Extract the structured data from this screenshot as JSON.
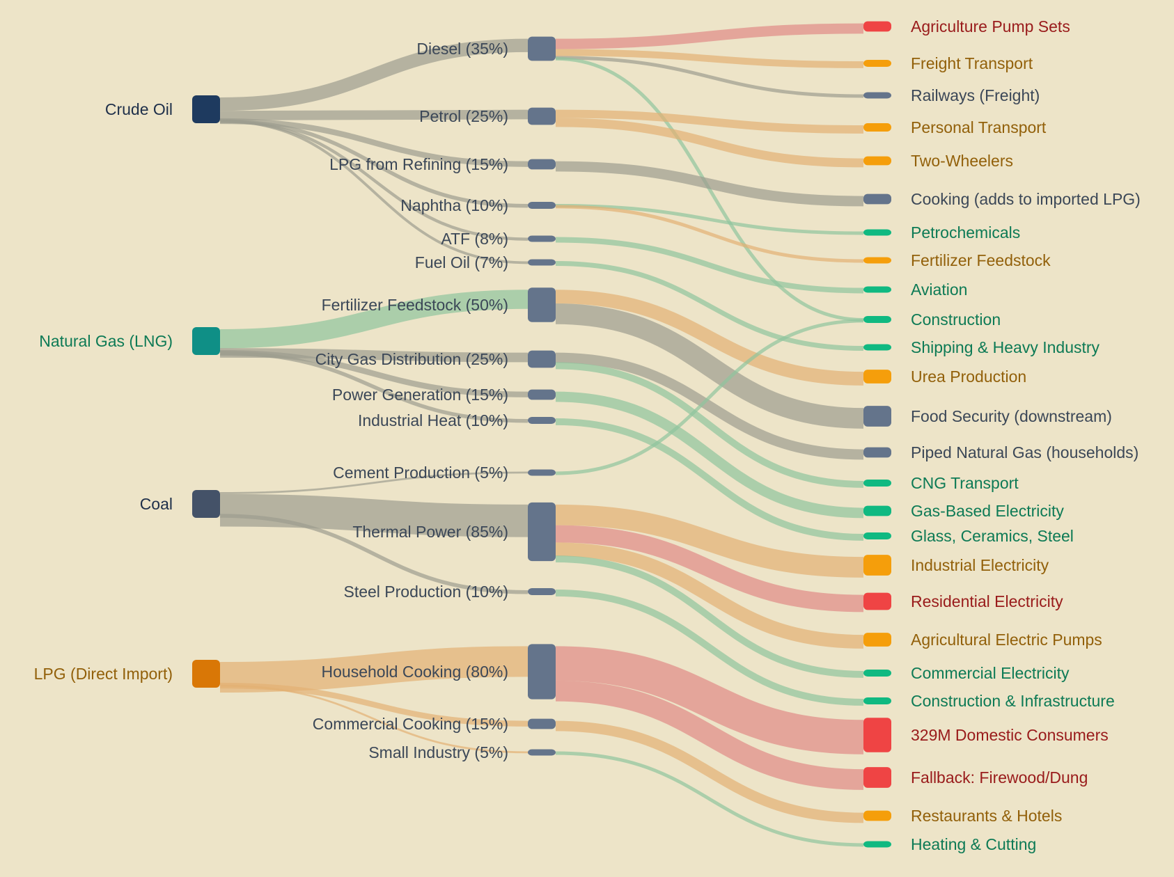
{
  "colors": {
    "background": "#ede4c8",
    "source_crude": "#1e3a5f",
    "source_gas": "#0f8f86",
    "source_coal": "#445268",
    "source_lpg": "#d97706",
    "mid_node": "#64748b",
    "red": "#ef4444",
    "amber": "#f59e0b",
    "green": "#10b981",
    "slate": "#64748b",
    "label_red": "#991b1b",
    "label_amber": "#92600a",
    "label_green": "#0d7a55",
    "label_slate": "#3b4757",
    "label_dark": "#1e2f4a",
    "label_mid": "#3b4757",
    "link_grey": "#9d9d8e",
    "link_red": "#e08a86",
    "link_amber": "#e2b173",
    "link_green": "#8fc59d"
  },
  "sources": [
    {
      "id": "crude",
      "label": "Crude Oil",
      "tone": "dark"
    },
    {
      "id": "gas",
      "label": "Natural Gas (LNG)",
      "tone": "green"
    },
    {
      "id": "coal",
      "label": "Coal",
      "tone": "dark"
    },
    {
      "id": "lpg",
      "label": "LPG (Direct Import)",
      "tone": "amber"
    }
  ],
  "intermediates": [
    {
      "id": "diesel",
      "label": "Diesel (35%)"
    },
    {
      "id": "petrol",
      "label": "Petrol (25%)"
    },
    {
      "id": "lpgref",
      "label": "LPG from Refining (15%)"
    },
    {
      "id": "naphtha",
      "label": "Naphtha (10%)"
    },
    {
      "id": "atf",
      "label": "ATF (8%)"
    },
    {
      "id": "fueloil",
      "label": "Fuel Oil (7%)"
    },
    {
      "id": "fert",
      "label": "Fertilizer Feedstock (50%)"
    },
    {
      "id": "citygas",
      "label": "City Gas Distribution (25%)"
    },
    {
      "id": "powergen",
      "label": "Power Generation (15%)"
    },
    {
      "id": "indheat",
      "label": "Industrial Heat (10%)"
    },
    {
      "id": "cement",
      "label": "Cement Production (5%)"
    },
    {
      "id": "thermal",
      "label": "Thermal Power (85%)"
    },
    {
      "id": "steel",
      "label": "Steel Production (10%)"
    },
    {
      "id": "hhcook",
      "label": "Household Cooking (80%)"
    },
    {
      "id": "comcook",
      "label": "Commercial Cooking (15%)"
    },
    {
      "id": "smallind",
      "label": "Small Industry (5%)"
    }
  ],
  "destinations": [
    {
      "id": "agpump",
      "label": "Agriculture Pump Sets",
      "tone": "red"
    },
    {
      "id": "freight",
      "label": "Freight Transport",
      "tone": "amber"
    },
    {
      "id": "rail",
      "label": "Railways (Freight)",
      "tone": "slate"
    },
    {
      "id": "personal",
      "label": "Personal Transport",
      "tone": "amber"
    },
    {
      "id": "twowheel",
      "label": "Two-Wheelers",
      "tone": "amber"
    },
    {
      "id": "cooking",
      "label": "Cooking (adds to imported LPG)",
      "tone": "slate"
    },
    {
      "id": "petchem",
      "label": "Petrochemicals",
      "tone": "green"
    },
    {
      "id": "fertfeed",
      "label": "Fertilizer Feedstock",
      "tone": "amber"
    },
    {
      "id": "aviation",
      "label": "Aviation",
      "tone": "green"
    },
    {
      "id": "construction",
      "label": "Construction",
      "tone": "green"
    },
    {
      "id": "shipping",
      "label": "Shipping & Heavy Industry",
      "tone": "green"
    },
    {
      "id": "urea",
      "label": "Urea Production",
      "tone": "amber"
    },
    {
      "id": "food",
      "label": "Food Security (downstream)",
      "tone": "slate"
    },
    {
      "id": "png",
      "label": "Piped Natural Gas (households)",
      "tone": "slate"
    },
    {
      "id": "cng",
      "label": "CNG Transport",
      "tone": "green"
    },
    {
      "id": "gaselec",
      "label": "Gas-Based Electricity",
      "tone": "green"
    },
    {
      "id": "glass",
      "label": "Glass, Ceramics, Steel",
      "tone": "green"
    },
    {
      "id": "indelec",
      "label": "Industrial Electricity",
      "tone": "amber"
    },
    {
      "id": "reselec",
      "label": "Residential Electricity",
      "tone": "red"
    },
    {
      "id": "agelec",
      "label": "Agricultural Electric Pumps",
      "tone": "amber"
    },
    {
      "id": "comelec",
      "label": "Commercial Electricity",
      "tone": "green"
    },
    {
      "id": "constinfra",
      "label": "Construction & Infrastructure",
      "tone": "green"
    },
    {
      "id": "domestic",
      "label": "329M Domestic Consumers",
      "tone": "red"
    },
    {
      "id": "firewood",
      "label": "Fallback: Firewood/Dung",
      "tone": "red"
    },
    {
      "id": "restaurants",
      "label": "Restaurants & Hotels",
      "tone": "amber"
    },
    {
      "id": "heating",
      "label": "Heating & Cutting",
      "tone": "green"
    }
  ],
  "flows": [
    {
      "from": "crude",
      "to": "diesel",
      "value": 35
    },
    {
      "from": "crude",
      "to": "petrol",
      "value": 25
    },
    {
      "from": "crude",
      "to": "lpgref",
      "value": 15
    },
    {
      "from": "crude",
      "to": "naphtha",
      "value": 10
    },
    {
      "from": "crude",
      "to": "atf",
      "value": 8
    },
    {
      "from": "crude",
      "to": "fueloil",
      "value": 7
    },
    {
      "from": "gas",
      "to": "fert",
      "value": 50
    },
    {
      "from": "gas",
      "to": "citygas",
      "value": 25
    },
    {
      "from": "gas",
      "to": "powergen",
      "value": 15
    },
    {
      "from": "gas",
      "to": "indheat",
      "value": 10
    },
    {
      "from": "coal",
      "to": "cement",
      "value": 5
    },
    {
      "from": "coal",
      "to": "thermal",
      "value": 85
    },
    {
      "from": "coal",
      "to": "steel",
      "value": 10
    },
    {
      "from": "lpg",
      "to": "hhcook",
      "value": 80
    },
    {
      "from": "lpg",
      "to": "comcook",
      "value": 15
    },
    {
      "from": "lpg",
      "to": "smallind",
      "value": 5
    },
    {
      "from": "diesel",
      "to": "agpump",
      "value": 15
    },
    {
      "from": "diesel",
      "to": "freight",
      "value": 10
    },
    {
      "from": "diesel",
      "to": "rail",
      "value": 5
    },
    {
      "from": "diesel",
      "to": "construction",
      "value": 5
    },
    {
      "from": "petrol",
      "to": "personal",
      "value": 12
    },
    {
      "from": "petrol",
      "to": "twowheel",
      "value": 13
    },
    {
      "from": "lpgref",
      "to": "cooking",
      "value": 15
    },
    {
      "from": "naphtha",
      "to": "petchem",
      "value": 5
    },
    {
      "from": "naphtha",
      "to": "fertfeed",
      "value": 5
    },
    {
      "from": "atf",
      "to": "aviation",
      "value": 8
    },
    {
      "from": "fueloil",
      "to": "shipping",
      "value": 7
    },
    {
      "from": "fert",
      "to": "urea",
      "value": 20
    },
    {
      "from": "fert",
      "to": "food",
      "value": 30
    },
    {
      "from": "citygas",
      "to": "png",
      "value": 15
    },
    {
      "from": "citygas",
      "to": "cng",
      "value": 10
    },
    {
      "from": "powergen",
      "to": "gaselec",
      "value": 15
    },
    {
      "from": "indheat",
      "to": "glass",
      "value": 10
    },
    {
      "from": "cement",
      "to": "construction",
      "value": 5
    },
    {
      "from": "thermal",
      "to": "indelec",
      "value": 30
    },
    {
      "from": "thermal",
      "to": "reselec",
      "value": 25
    },
    {
      "from": "thermal",
      "to": "agelec",
      "value": 20
    },
    {
      "from": "thermal",
      "to": "comelec",
      "value": 10
    },
    {
      "from": "steel",
      "to": "constinfra",
      "value": 10
    },
    {
      "from": "hhcook",
      "to": "domestic",
      "value": 50
    },
    {
      "from": "hhcook",
      "to": "firewood",
      "value": 30
    },
    {
      "from": "comcook",
      "to": "restaurants",
      "value": 15
    },
    {
      "from": "smallind",
      "to": "heating",
      "value": 5
    }
  ]
}
